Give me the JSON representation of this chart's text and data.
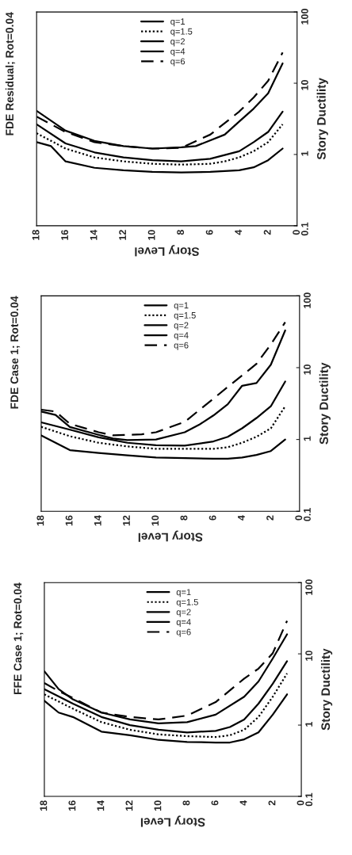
{
  "chart_data": [
    {
      "type": "line",
      "title": "FFE Case 1; Rot=0.04",
      "xlabel": "Story Level",
      "ylabel": "Story Ductility",
      "xlim": [
        18,
        0
      ],
      "xticks": [
        18,
        16,
        14,
        12,
        10,
        8,
        6,
        4,
        2,
        0
      ],
      "ylim": [
        0.1,
        100
      ],
      "yticks": [
        0.1,
        1,
        10,
        100
      ],
      "log": "y",
      "legend": "top",
      "series": [
        {
          "name": "q=1",
          "color": "#000000",
          "line_style": "solid",
          "x": [
            18,
            17,
            16,
            14,
            12,
            10,
            8,
            6,
            5,
            4,
            3,
            2,
            1
          ],
          "values": [
            2.2,
            1.5,
            1.3,
            0.81,
            0.72,
            0.62,
            0.58,
            0.57,
            0.57,
            0.63,
            0.79,
            1.4,
            2.7
          ]
        },
        {
          "name": "q=1.5",
          "color": "#000000",
          "line_style": "dotted",
          "x": [
            18,
            16,
            14,
            12,
            10,
            8,
            6,
            5,
            4,
            3,
            2,
            1
          ],
          "values": [
            2.7,
            1.7,
            1.1,
            0.86,
            0.74,
            0.7,
            0.68,
            0.72,
            0.86,
            1.3,
            2.5,
            5.3
          ]
        },
        {
          "name": "q=2",
          "color": "#000000",
          "line_style": "solid",
          "x": [
            18,
            16,
            14,
            12,
            10,
            8,
            6,
            5,
            4,
            3,
            2,
            1
          ],
          "values": [
            3.2,
            2.0,
            1.3,
            1.0,
            0.86,
            0.79,
            0.83,
            0.94,
            1.2,
            2.0,
            3.8,
            7.9
          ]
        },
        {
          "name": "q=4",
          "color": "#000000",
          "line_style": "solid",
          "x": [
            18,
            17,
            16,
            14,
            12,
            10,
            8,
            6,
            4,
            3,
            2,
            1
          ],
          "values": [
            5.7,
            3.2,
            2.3,
            1.5,
            1.2,
            1.06,
            1.1,
            1.4,
            2.5,
            4.1,
            8.6,
            18.8
          ]
        },
        {
          "name": "q=6",
          "color": "#000000",
          "line_style": "dashed",
          "x": [
            18,
            17,
            16,
            14,
            12,
            10,
            8,
            6,
            4,
            3,
            2,
            1
          ],
          "values": [
            3.9,
            3.0,
            2.4,
            1.5,
            1.3,
            1.2,
            1.36,
            2.1,
            4.5,
            6.2,
            10.2,
            29
          ]
        }
      ]
    },
    {
      "type": "line",
      "title": "FDE Case 1; Rot=0.04",
      "xlabel": "Story Level",
      "ylabel": "Story Ductility",
      "xlim": [
        18,
        0
      ],
      "xticks": [
        18,
        16,
        14,
        12,
        10,
        8,
        6,
        4,
        2,
        0
      ],
      "ylim": [
        0.1,
        100
      ],
      "yticks": [
        0.1,
        1,
        10,
        100
      ],
      "log": "y",
      "legend": "top",
      "series": [
        {
          "name": "q=1",
          "color": "#000000",
          "line_style": "solid",
          "x": [
            18,
            16,
            14,
            12,
            10,
            8,
            6,
            5,
            4,
            3,
            2,
            1
          ],
          "values": [
            1.14,
            0.71,
            0.65,
            0.6,
            0.56,
            0.55,
            0.54,
            0.54,
            0.56,
            0.61,
            0.69,
            1.0
          ]
        },
        {
          "name": "q=1.5",
          "color": "#000000",
          "line_style": "dotted",
          "x": [
            18,
            16,
            14,
            12,
            10,
            8,
            6,
            5,
            4,
            3,
            2,
            1
          ],
          "values": [
            1.5,
            1.11,
            0.9,
            0.8,
            0.74,
            0.74,
            0.74,
            0.78,
            0.9,
            1.09,
            1.43,
            2.9
          ]
        },
        {
          "name": "q=2",
          "color": "#000000",
          "line_style": "solid",
          "x": [
            18,
            16,
            14,
            12,
            10,
            8,
            6,
            5,
            4,
            3,
            2,
            1
          ],
          "values": [
            1.73,
            1.37,
            1.07,
            0.9,
            0.83,
            0.82,
            0.94,
            1.09,
            1.43,
            1.99,
            2.9,
            6.4
          ]
        },
        {
          "name": "q=4",
          "color": "#000000",
          "line_style": "solid",
          "x": [
            18,
            17,
            16,
            14,
            13,
            12,
            10,
            8,
            7,
            6,
            5,
            4,
            3,
            2,
            1
          ],
          "values": [
            2.45,
            2.2,
            1.49,
            1.16,
            1.03,
            0.98,
            1.0,
            1.26,
            1.6,
            2.16,
            3.1,
            5.6,
            6.1,
            11,
            33
          ]
        },
        {
          "name": "q=6",
          "color": "#000000",
          "line_style": "dashed",
          "x": [
            18,
            17,
            16,
            14,
            13,
            11,
            10,
            8,
            6,
            5,
            4,
            3,
            2,
            1
          ],
          "values": [
            2.6,
            2.45,
            1.65,
            1.26,
            1.14,
            1.18,
            1.26,
            1.76,
            3.7,
            5.4,
            7.8,
            11.3,
            21,
            43
          ]
        }
      ]
    },
    {
      "type": "line",
      "title": "FDE Residual; Rot=0.04",
      "xlabel": "Story Level",
      "ylabel": "Story Ductility",
      "xlim": [
        18,
        0
      ],
      "xticks": [
        18,
        16,
        14,
        12,
        10,
        8,
        6,
        4,
        2,
        0
      ],
      "ylim": [
        0.1,
        100
      ],
      "yticks": [
        0.1,
        1,
        10,
        100
      ],
      "log": "y",
      "legend": "top",
      "series": [
        {
          "name": "q=1",
          "color": "#000000",
          "line_style": "solid",
          "x": [
            18,
            17,
            16,
            14,
            12,
            10,
            8,
            6,
            4,
            3,
            2,
            1
          ],
          "values": [
            1.49,
            1.31,
            0.8,
            0.65,
            0.6,
            0.57,
            0.56,
            0.57,
            0.6,
            0.66,
            0.83,
            1.21
          ]
        },
        {
          "name": "q=1.5",
          "color": "#000000",
          "line_style": "dotted",
          "x": [
            18,
            16,
            14,
            12,
            10,
            8,
            6,
            5,
            4,
            3,
            2,
            1
          ],
          "values": [
            1.99,
            1.21,
            0.91,
            0.8,
            0.74,
            0.72,
            0.74,
            0.8,
            0.91,
            1.11,
            1.49,
            2.65
          ]
        },
        {
          "name": "q=2",
          "color": "#000000",
          "line_style": "solid",
          "x": [
            18,
            16,
            14,
            12,
            10,
            8,
            6,
            4,
            3,
            2,
            1
          ],
          "values": [
            2.65,
            1.43,
            1.07,
            0.91,
            0.83,
            0.8,
            0.87,
            1.11,
            1.49,
            2.07,
            4.0
          ]
        },
        {
          "name": "q=4",
          "color": "#000000",
          "line_style": "solid",
          "x": [
            18,
            16,
            14,
            12,
            10,
            8,
            7,
            5,
            4,
            3,
            2,
            1
          ],
          "values": [
            4.1,
            2.16,
            1.55,
            1.31,
            1.21,
            1.26,
            1.31,
            1.9,
            2.9,
            4.4,
            7.2,
            19
          ]
        },
        {
          "name": "q=6",
          "color": "#000000",
          "line_style": "dashed",
          "x": [
            18,
            16,
            14,
            12,
            10,
            8,
            6,
            4,
            3,
            2,
            1
          ],
          "values": [
            3.4,
            2.07,
            1.49,
            1.31,
            1.21,
            1.24,
            1.9,
            4.0,
            6.3,
            10.8,
            27
          ]
        }
      ]
    }
  ]
}
